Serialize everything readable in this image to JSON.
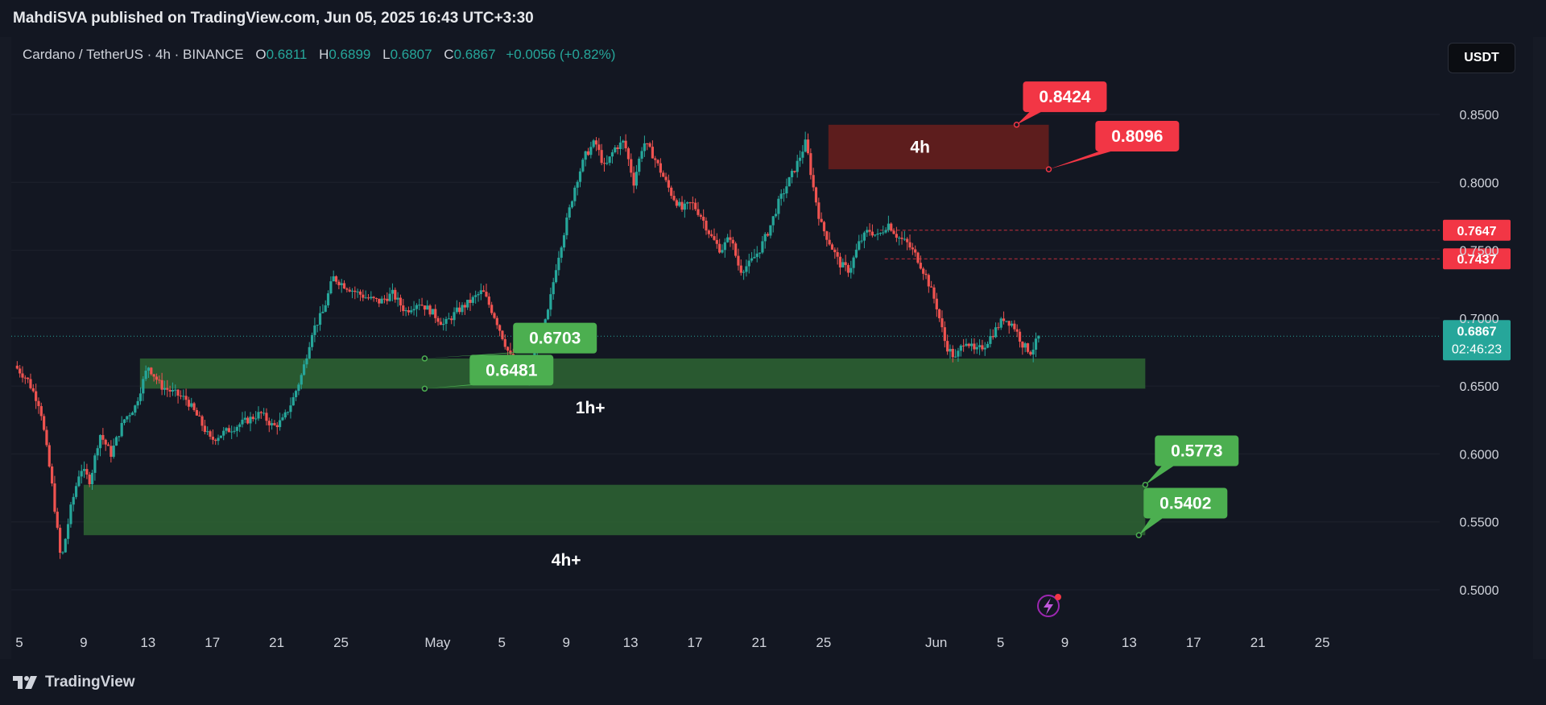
{
  "publisher": "MahdiSVA published on TradingView.com, Jun 05, 2025 16:43 UTC+3:30",
  "legend": {
    "symbol": "Cardano / TetherUS · 4h · BINANCE",
    "open_label": "O",
    "open": "0.6811",
    "high_label": "H",
    "high": "0.6899",
    "low_label": "L",
    "low": "0.6807",
    "close_label": "C",
    "close": "0.6867",
    "change": "+0.0056 (+0.82%)"
  },
  "currency_button": "USDT",
  "brand": "TradingView",
  "colors": {
    "up": "#26a69a",
    "down": "#ef5350",
    "green_label": "#4caf50",
    "red_label": "#f23645",
    "green_zone": "#2f6b34",
    "red_zone": "#6b1f1c"
  },
  "chart_data": {
    "type": "candlestick",
    "symbol": "ADA/USDT",
    "timeframe": "4h",
    "ylim": [
      0.485,
      0.875
    ],
    "y_ticks": [
      "0.8500",
      "0.8000",
      "0.7500",
      "0.7000",
      "0.6500",
      "0.6000",
      "0.5500",
      "0.5000"
    ],
    "x_ticks": [
      {
        "label": "5",
        "day": 5
      },
      {
        "label": "9",
        "day": 9
      },
      {
        "label": "13",
        "day": 13
      },
      {
        "label": "17",
        "day": 17
      },
      {
        "label": "21",
        "day": 21
      },
      {
        "label": "25",
        "day": 25
      },
      {
        "label": "May",
        "day": 31
      },
      {
        "label": "5",
        "day": 35
      },
      {
        "label": "9",
        "day": 39
      },
      {
        "label": "13",
        "day": 43
      },
      {
        "label": "17",
        "day": 47
      },
      {
        "label": "21",
        "day": 51
      },
      {
        "label": "25",
        "day": 55
      },
      {
        "label": "Jun",
        "day": 62
      },
      {
        "label": "5",
        "day": 66
      },
      {
        "label": "9",
        "day": 70
      },
      {
        "label": "13",
        "day": 74
      },
      {
        "label": "17",
        "day": 78
      },
      {
        "label": "21",
        "day": 82
      },
      {
        "label": "25",
        "day": 86
      }
    ],
    "price_path": [
      {
        "day": 4.7,
        "price": 0.665
      },
      {
        "day": 5.5,
        "price": 0.655
      },
      {
        "day": 6.3,
        "price": 0.635
      },
      {
        "day": 7.0,
        "price": 0.58
      },
      {
        "day": 7.6,
        "price": 0.52
      },
      {
        "day": 8.2,
        "price": 0.56
      },
      {
        "day": 8.8,
        "price": 0.59
      },
      {
        "day": 9.4,
        "price": 0.58
      },
      {
        "day": 10.0,
        "price": 0.615
      },
      {
        "day": 10.7,
        "price": 0.6
      },
      {
        "day": 11.5,
        "price": 0.625
      },
      {
        "day": 12.2,
        "price": 0.635
      },
      {
        "day": 13.0,
        "price": 0.665
      },
      {
        "day": 13.8,
        "price": 0.65
      },
      {
        "day": 14.6,
        "price": 0.645
      },
      {
        "day": 15.4,
        "price": 0.64
      },
      {
        "day": 16.2,
        "price": 0.625
      },
      {
        "day": 16.9,
        "price": 0.61
      },
      {
        "day": 17.6,
        "price": 0.615
      },
      {
        "day": 18.4,
        "price": 0.62
      },
      {
        "day": 19.2,
        "price": 0.625
      },
      {
        "day": 20.0,
        "price": 0.63
      },
      {
        "day": 20.8,
        "price": 0.62
      },
      {
        "day": 21.4,
        "price": 0.625
      },
      {
        "day": 22.0,
        "price": 0.64
      },
      {
        "day": 22.6,
        "price": 0.66
      },
      {
        "day": 23.2,
        "price": 0.69
      },
      {
        "day": 23.9,
        "price": 0.705
      },
      {
        "day": 24.5,
        "price": 0.73
      },
      {
        "day": 25.1,
        "price": 0.725
      },
      {
        "day": 25.8,
        "price": 0.72
      },
      {
        "day": 26.6,
        "price": 0.715
      },
      {
        "day": 27.4,
        "price": 0.712
      },
      {
        "day": 28.2,
        "price": 0.718
      },
      {
        "day": 29.0,
        "price": 0.705
      },
      {
        "day": 29.8,
        "price": 0.712
      },
      {
        "day": 30.6,
        "price": 0.705
      },
      {
        "day": 31.4,
        "price": 0.695
      },
      {
        "day": 32.2,
        "price": 0.705
      },
      {
        "day": 33.0,
        "price": 0.712
      },
      {
        "day": 33.8,
        "price": 0.72
      },
      {
        "day": 34.6,
        "price": 0.7
      },
      {
        "day": 35.4,
        "price": 0.675
      },
      {
        "day": 36.0,
        "price": 0.66
      },
      {
        "day": 36.6,
        "price": 0.655
      },
      {
        "day": 37.2,
        "price": 0.68
      },
      {
        "day": 37.8,
        "price": 0.7
      },
      {
        "day": 38.4,
        "price": 0.74
      },
      {
        "day": 39.0,
        "price": 0.77
      },
      {
        "day": 39.6,
        "price": 0.8
      },
      {
        "day": 40.2,
        "price": 0.82
      },
      {
        "day": 40.8,
        "price": 0.83
      },
      {
        "day": 41.4,
        "price": 0.81
      },
      {
        "day": 42.0,
        "price": 0.825
      },
      {
        "day": 42.6,
        "price": 0.83
      },
      {
        "day": 43.2,
        "price": 0.8
      },
      {
        "day": 43.8,
        "price": 0.83
      },
      {
        "day": 44.4,
        "price": 0.82
      },
      {
        "day": 45.0,
        "price": 0.805
      },
      {
        "day": 45.6,
        "price": 0.79
      },
      {
        "day": 46.2,
        "price": 0.78
      },
      {
        "day": 46.8,
        "price": 0.785
      },
      {
        "day": 47.4,
        "price": 0.775
      },
      {
        "day": 48.0,
        "price": 0.76
      },
      {
        "day": 48.6,
        "price": 0.75
      },
      {
        "day": 49.2,
        "price": 0.76
      },
      {
        "day": 49.8,
        "price": 0.735
      },
      {
        "day": 50.4,
        "price": 0.74
      },
      {
        "day": 51.0,
        "price": 0.75
      },
      {
        "day": 51.6,
        "price": 0.765
      },
      {
        "day": 52.2,
        "price": 0.785
      },
      {
        "day": 52.8,
        "price": 0.8
      },
      {
        "day": 53.4,
        "price": 0.815
      },
      {
        "day": 53.9,
        "price": 0.83
      },
      {
        "day": 54.3,
        "price": 0.8
      },
      {
        "day": 54.8,
        "price": 0.77
      },
      {
        "day": 55.4,
        "price": 0.755
      },
      {
        "day": 56.0,
        "price": 0.74
      },
      {
        "day": 56.6,
        "price": 0.735
      },
      {
        "day": 57.2,
        "price": 0.755
      },
      {
        "day": 57.8,
        "price": 0.765
      },
      {
        "day": 58.4,
        "price": 0.76
      },
      {
        "day": 59.0,
        "price": 0.77
      },
      {
        "day": 59.6,
        "price": 0.76
      },
      {
        "day": 60.2,
        "price": 0.755
      },
      {
        "day": 60.8,
        "price": 0.745
      },
      {
        "day": 61.4,
        "price": 0.73
      },
      {
        "day": 62.0,
        "price": 0.71
      },
      {
        "day": 62.6,
        "price": 0.68
      },
      {
        "day": 63.2,
        "price": 0.67
      },
      {
        "day": 63.8,
        "price": 0.685
      },
      {
        "day": 64.4,
        "price": 0.675
      },
      {
        "day": 65.0,
        "price": 0.68
      },
      {
        "day": 65.6,
        "price": 0.69
      },
      {
        "day": 66.2,
        "price": 0.7
      },
      {
        "day": 66.8,
        "price": 0.695
      },
      {
        "day": 67.4,
        "price": 0.68
      },
      {
        "day": 67.9,
        "price": 0.675
      },
      {
        "day": 68.4,
        "price": 0.6867
      }
    ],
    "last_price": 0.6867,
    "last_price_label": "0.6867",
    "countdown": "02:46:23",
    "zones": [
      {
        "label": "4h",
        "color": "red",
        "from_day": 55.3,
        "to_day": 69.0,
        "top": 0.8424,
        "bottom": 0.8096,
        "label_day": 61.0,
        "label_price": 0.826
      },
      {
        "label": "1h+",
        "color": "green",
        "from_day": 12.5,
        "to_day": 75.0,
        "top": 0.6703,
        "bottom": 0.6481,
        "label_day": 40.5,
        "label_price": 0.634
      },
      {
        "label": "4h+",
        "color": "green",
        "from_day": 9.0,
        "to_day": 75.0,
        "top": 0.5773,
        "bottom": 0.5402,
        "label_day": 39.0,
        "label_price": 0.522
      }
    ],
    "annotations": [
      {
        "text": "0.8424",
        "price": 0.8424,
        "color": "red",
        "anchor_day": 67.0,
        "label_day": 70.0,
        "label_price": 0.863
      },
      {
        "text": "0.8096",
        "price": 0.8096,
        "color": "red",
        "anchor_day": 69.0,
        "label_day": 74.5,
        "label_price": 0.834
      },
      {
        "text": "0.6703",
        "price": 0.6703,
        "color": "green",
        "anchor_day": 30.2,
        "label_day": 38.3,
        "label_price": 0.6853
      },
      {
        "text": "0.6481",
        "price": 0.6481,
        "color": "green",
        "anchor_day": 30.2,
        "label_day": 35.6,
        "label_price": 0.6617
      },
      {
        "text": "0.5773",
        "price": 0.5773,
        "color": "green",
        "anchor_day": 75.0,
        "label_day": 78.2,
        "label_price": 0.6023
      },
      {
        "text": "0.5402",
        "price": 0.5402,
        "color": "green",
        "anchor_day": 74.6,
        "label_day": 77.5,
        "label_price": 0.5638
      }
    ],
    "hlines": [
      {
        "price": 0.7647,
        "label": "0.7647",
        "from_day": 58.5
      },
      {
        "price": 0.7437,
        "label": "0.7437",
        "from_day": 58.8
      }
    ]
  }
}
